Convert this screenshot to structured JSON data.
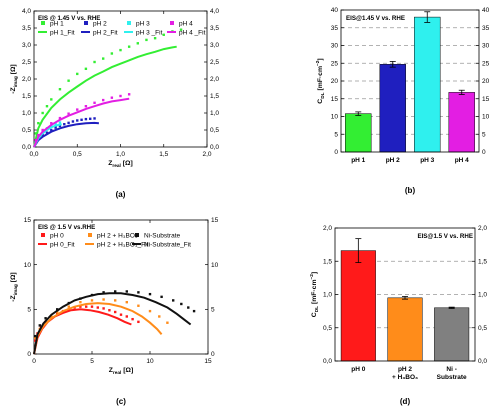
{
  "colors": {
    "red": "#ff1a1a",
    "orange": "#ff8c1a",
    "black": "#111111",
    "green": "#33ee33",
    "blue": "#1f1fbf",
    "cyan": "#2ff0ee",
    "magenta": "#e31ee3",
    "gray": "#808080",
    "grid": "#999999"
  },
  "chart_data": [
    {
      "panel": "(a)",
      "type": "scatter",
      "annotation": "EIS @ 1.45 V vs. RHE",
      "xlabel": "Z_real [Ω]",
      "ylabel": "-Z_imag [Ω]",
      "xlim": [
        0,
        2.0
      ],
      "ylim": [
        0,
        4.0
      ],
      "xticks": [
        "0,0",
        "0,5",
        "1,0",
        "1,5",
        "2,0"
      ],
      "yticks": [
        "0,0",
        "0,5",
        "1,0",
        "1,5",
        "2,0",
        "2,5",
        "3,0",
        "3,5",
        "4,0"
      ],
      "legend": "top-left, 2 rows x 4 columns",
      "series": [
        {
          "name": "pH 1",
          "color": "green",
          "kind": "points",
          "x": [
            0.02,
            0.05,
            0.1,
            0.15,
            0.2,
            0.3,
            0.4,
            0.5,
            0.6,
            0.7,
            0.8,
            0.9,
            1.0,
            1.1,
            1.2,
            1.3,
            1.4,
            1.5,
            1.6,
            1.7
          ],
          "y": [
            0.4,
            0.7,
            1.0,
            1.2,
            1.4,
            1.7,
            1.95,
            2.15,
            2.3,
            2.5,
            2.6,
            2.75,
            2.85,
            2.95,
            3.05,
            3.15,
            3.2,
            3.3,
            3.4,
            3.45
          ]
        },
        {
          "name": "pH 1_Fit",
          "color": "green",
          "kind": "line",
          "x": [
            0.0,
            0.05,
            0.1,
            0.2,
            0.3,
            0.4,
            0.5,
            0.6,
            0.7,
            0.8,
            0.9,
            1.0,
            1.1,
            1.2,
            1.3,
            1.4,
            1.5,
            1.6,
            1.65
          ],
          "y": [
            0.0,
            0.55,
            0.8,
            1.15,
            1.4,
            1.6,
            1.78,
            1.95,
            2.1,
            2.22,
            2.35,
            2.45,
            2.55,
            2.65,
            2.73,
            2.8,
            2.88,
            2.93,
            2.95
          ]
        },
        {
          "name": "pH 2",
          "color": "blue",
          "kind": "points",
          "x": [
            0.02,
            0.05,
            0.1,
            0.15,
            0.2,
            0.25,
            0.3,
            0.35,
            0.4,
            0.45,
            0.5,
            0.55,
            0.6,
            0.65,
            0.7
          ],
          "y": [
            0.15,
            0.25,
            0.35,
            0.42,
            0.5,
            0.57,
            0.62,
            0.67,
            0.71,
            0.75,
            0.78,
            0.8,
            0.82,
            0.83,
            0.84
          ]
        },
        {
          "name": "pH 2_Fit",
          "color": "blue",
          "kind": "line",
          "x": [
            0.0,
            0.05,
            0.1,
            0.2,
            0.3,
            0.4,
            0.5,
            0.6,
            0.7,
            0.75
          ],
          "y": [
            0.0,
            0.2,
            0.3,
            0.45,
            0.55,
            0.62,
            0.67,
            0.7,
            0.71,
            0.7
          ]
        },
        {
          "name": "pH 3",
          "color": "cyan",
          "kind": "points",
          "x": [
            0.02,
            0.05,
            0.1,
            0.15,
            0.2,
            0.25,
            0.3
          ],
          "y": [
            0.15,
            0.3,
            0.45,
            0.55,
            0.62,
            0.68,
            0.72
          ]
        },
        {
          "name": "pH 3 _Fit",
          "color": "cyan",
          "kind": "line",
          "x": [
            0.0,
            0.05,
            0.1,
            0.15,
            0.2,
            0.25,
            0.3,
            0.32
          ],
          "y": [
            0.0,
            0.25,
            0.4,
            0.5,
            0.58,
            0.63,
            0.66,
            0.67
          ]
        },
        {
          "name": "pH 4",
          "color": "magenta",
          "kind": "points",
          "x": [
            0.02,
            0.05,
            0.1,
            0.2,
            0.3,
            0.4,
            0.5,
            0.6,
            0.7,
            0.8,
            0.9,
            1.0,
            1.1
          ],
          "y": [
            0.2,
            0.35,
            0.5,
            0.7,
            0.85,
            0.98,
            1.1,
            1.2,
            1.3,
            1.38,
            1.45,
            1.5,
            1.55
          ]
        },
        {
          "name": "pH 4 _Fit",
          "color": "magenta",
          "kind": "line",
          "x": [
            0.0,
            0.05,
            0.1,
            0.2,
            0.3,
            0.4,
            0.5,
            0.6,
            0.7,
            0.8,
            0.9,
            1.0,
            1.1
          ],
          "y": [
            0.0,
            0.3,
            0.45,
            0.65,
            0.8,
            0.92,
            1.02,
            1.12,
            1.2,
            1.28,
            1.34,
            1.38,
            1.42
          ]
        }
      ]
    },
    {
      "panel": "(b)",
      "type": "bar",
      "annotation": "EIS@1.45 V vs. RHE",
      "ylabel": "C_DL [mF·cm⁻²]",
      "ylim": [
        0,
        40
      ],
      "yticks": [
        "0",
        "5",
        "10",
        "15",
        "20",
        "25",
        "30",
        "35",
        "40"
      ],
      "grid": "horizontal dashed",
      "categories": [
        "pH 1",
        "pH 2",
        "pH 3",
        "pH 4"
      ],
      "values": [
        10.8,
        24.7,
        38.0,
        16.8
      ],
      "errors": [
        0.5,
        0.8,
        1.5,
        0.6
      ],
      "bar_colors": [
        "green",
        "blue",
        "cyan",
        "magenta"
      ]
    },
    {
      "panel": "(c)",
      "type": "scatter",
      "annotation": "EIS @ 1.5 V vs.RHE",
      "xlabel": "Z_real [Ω]",
      "ylabel": "-Z_imag [Ω]",
      "xlim": [
        0,
        15
      ],
      "ylim": [
        0,
        15
      ],
      "xticks": [
        "0",
        "5",
        "10",
        "15"
      ],
      "yticks": [
        "0",
        "5",
        "10",
        "15"
      ],
      "legend": "top-left, 2 rows x 3 columns",
      "series": [
        {
          "name": "pH 0",
          "color": "red",
          "kind": "points",
          "x": [
            0.1,
            0.3,
            0.6,
            1.0,
            1.5,
            2.0,
            2.5,
            3.0,
            3.5,
            4.0,
            4.5,
            5.0,
            5.5,
            6.0,
            6.5,
            7.0,
            7.5,
            8.0,
            8.5,
            9.0
          ],
          "y": [
            1.5,
            2.3,
            3.0,
            3.6,
            4.1,
            4.5,
            4.8,
            5.0,
            5.2,
            5.3,
            5.3,
            5.3,
            5.2,
            5.1,
            4.9,
            4.7,
            4.4,
            4.2,
            3.9,
            3.6
          ]
        },
        {
          "name": "pH 0_Fit",
          "color": "red",
          "kind": "line",
          "x": [
            0.0,
            0.3,
            0.7,
            1.2,
            1.8,
            2.5,
            3.2,
            4.0,
            4.8,
            5.6,
            6.4,
            7.2,
            7.8,
            8.4
          ],
          "y": [
            0.0,
            1.8,
            2.8,
            3.6,
            4.2,
            4.6,
            4.9,
            5.0,
            4.9,
            4.7,
            4.4,
            4.0,
            3.6,
            3.3
          ]
        },
        {
          "name": "pH 2 + H₃BO₃",
          "color": "orange",
          "kind": "points",
          "x": [
            0.1,
            0.5,
            1.0,
            1.5,
            2.0,
            3.0,
            4.0,
            5.0,
            6.0,
            7.0,
            8.0,
            9.0,
            10.0,
            10.8,
            11.5
          ],
          "y": [
            1.8,
            2.8,
            3.6,
            4.2,
            4.7,
            5.3,
            5.8,
            6.0,
            6.1,
            6.0,
            5.8,
            5.4,
            4.8,
            4.2,
            3.5
          ]
        },
        {
          "name": "pH 2 + H₃BO₃_Fit",
          "color": "orange",
          "kind": "line",
          "x": [
            0.0,
            0.3,
            0.8,
            1.5,
            2.5,
            3.5,
            4.5,
            5.5,
            6.5,
            7.5,
            8.5,
            9.3,
            10.0,
            10.6,
            11.0
          ],
          "y": [
            0.0,
            2.0,
            3.1,
            4.0,
            4.8,
            5.3,
            5.6,
            5.7,
            5.6,
            5.3,
            4.8,
            4.2,
            3.5,
            2.8,
            2.2
          ]
        },
        {
          "name": "Ni-Substrate",
          "color": "black",
          "kind": "points",
          "x": [
            0.1,
            0.5,
            1.0,
            2.0,
            3.0,
            4.0,
            5.0,
            6.0,
            7.0,
            8.0,
            9.0,
            10.0,
            11.0,
            12.0,
            12.7,
            13.3,
            13.8
          ],
          "y": [
            2.0,
            3.2,
            4.0,
            5.0,
            5.7,
            6.2,
            6.6,
            6.9,
            7.0,
            7.0,
            6.9,
            6.7,
            6.4,
            6.0,
            5.6,
            5.2,
            4.8
          ]
        },
        {
          "name": "Ni-Substrate_Fit",
          "color": "black",
          "kind": "line",
          "x": [
            0.0,
            0.3,
            0.8,
            1.5,
            2.5,
            3.5,
            4.5,
            5.5,
            6.5,
            7.5,
            8.5,
            9.5,
            10.5,
            11.5,
            12.3,
            13.0,
            13.5
          ],
          "y": [
            0.0,
            2.2,
            3.4,
            4.4,
            5.3,
            6.0,
            6.4,
            6.7,
            6.8,
            6.8,
            6.6,
            6.3,
            5.8,
            5.2,
            4.5,
            3.8,
            3.3
          ]
        }
      ]
    },
    {
      "panel": "(d)",
      "type": "bar",
      "annotation": "EIS@1.5 V vs. RHE",
      "ylabel": "C_DL [mF·cm⁻²]",
      "ylim": [
        0,
        2.0
      ],
      "yticks": [
        "0,0",
        "0,5",
        "1,0",
        "1,5",
        "2,0"
      ],
      "grid": "horizontal dashed",
      "categories": [
        "pH 0",
        "pH 2\n+ H₃BO₃",
        "Ni -\nSubstrate"
      ],
      "values": [
        1.66,
        0.95,
        0.8
      ],
      "errors": [
        0.18,
        0.02,
        0.01
      ],
      "bar_colors": [
        "red",
        "orange",
        "gray"
      ]
    }
  ]
}
